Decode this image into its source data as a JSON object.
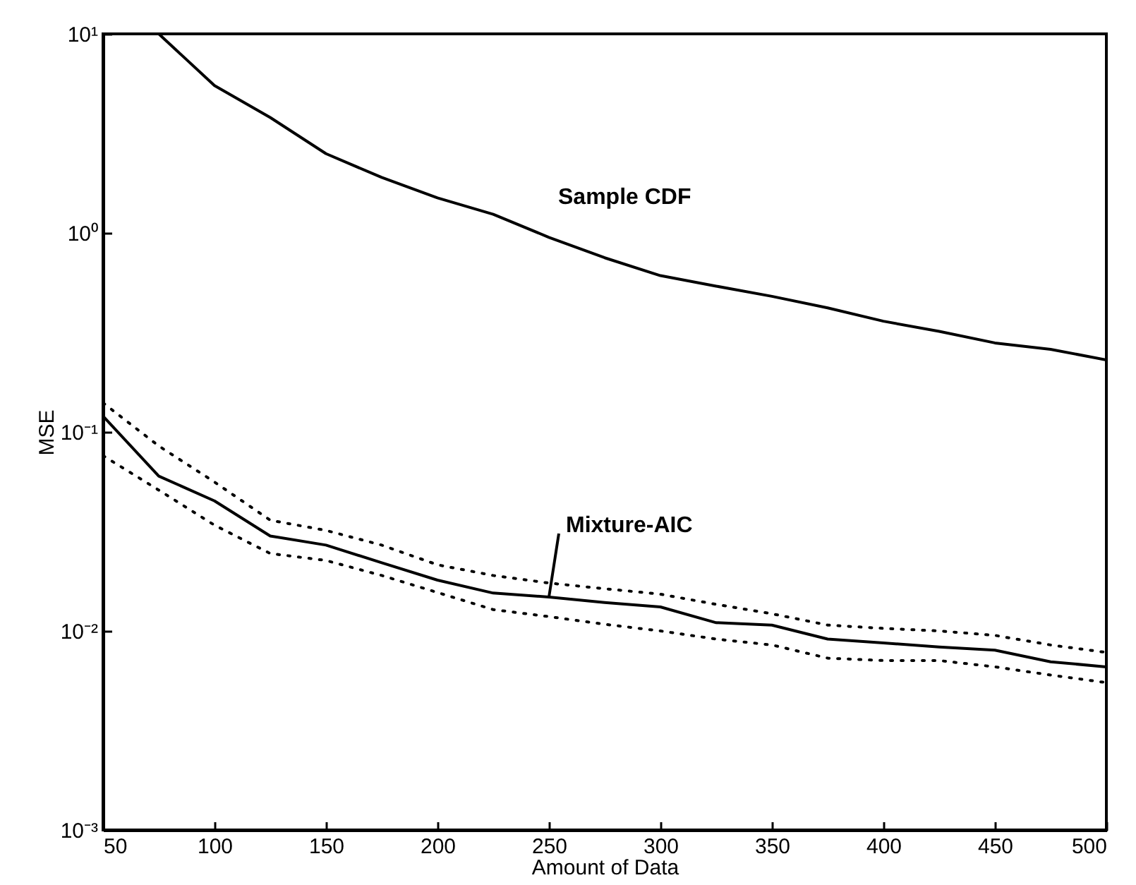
{
  "chart_data": {
    "type": "line",
    "xlabel": "Amount of Data",
    "ylabel": "MSE",
    "log": "y",
    "grid": false,
    "marker": "none",
    "xlim": [
      50,
      500
    ],
    "xticks": [
      50,
      100,
      150,
      200,
      250,
      300,
      350,
      400,
      450,
      500
    ],
    "ylim": [
      0.001,
      10
    ],
    "yticks": [
      {
        "value": 0.001,
        "label": "10⁻³"
      },
      {
        "value": 0.01,
        "label": "10⁻²"
      },
      {
        "value": 0.1,
        "label": "10⁻¹"
      },
      {
        "value": 1,
        "label": "10⁰"
      },
      {
        "value": 10,
        "label": "10¹"
      }
    ],
    "series": [
      {
        "name": "Sample CDF",
        "color": "#000000",
        "line_style": "solid",
        "x": [
          75,
          100,
          125,
          150,
          175,
          200,
          225,
          250,
          275,
          300,
          325,
          350,
          375,
          400,
          425,
          450,
          475,
          500
        ],
        "values": [
          10,
          5.5,
          3.8,
          2.5,
          1.9,
          1.5,
          1.24,
          0.95,
          0.75,
          0.61,
          0.54,
          0.48,
          0.42,
          0.36,
          0.32,
          0.28,
          0.26,
          0.23
        ]
      },
      {
        "name": "Mixture-AIC",
        "color": "#000000",
        "line_style": "solid",
        "x": [
          50,
          75,
          100,
          125,
          150,
          175,
          200,
          225,
          250,
          275,
          300,
          325,
          350,
          375,
          400,
          425,
          450,
          475,
          500
        ],
        "values": [
          0.12,
          0.06,
          0.045,
          0.03,
          0.027,
          0.022,
          0.018,
          0.0155,
          0.0148,
          0.0139,
          0.0132,
          0.011,
          0.0107,
          0.0091,
          0.0087,
          0.0083,
          0.008,
          0.007,
          0.0066
        ]
      },
      {
        "color": "#000000",
        "line_style": "dotted",
        "x": [
          50,
          75,
          100,
          125,
          150,
          175,
          200,
          225,
          250,
          275,
          300,
          325,
          350,
          375,
          400,
          425,
          450,
          475,
          500
        ],
        "values": [
          0.076,
          0.051,
          0.034,
          0.0245,
          0.0226,
          0.019,
          0.0156,
          0.0128,
          0.0118,
          0.0108,
          0.01,
          0.0091,
          0.0085,
          0.0073,
          0.0071,
          0.0071,
          0.0066,
          0.006,
          0.0055
        ]
      },
      {
        "color": "#000000",
        "line_style": "dotted",
        "x": [
          50,
          75,
          100,
          125,
          150,
          175,
          200,
          225,
          250,
          275,
          300,
          325,
          350,
          375,
          400,
          425,
          450,
          475,
          500
        ],
        "values": [
          0.14,
          0.085,
          0.056,
          0.036,
          0.032,
          0.027,
          0.0215,
          0.019,
          0.0174,
          0.0163,
          0.0153,
          0.0136,
          0.0122,
          0.0107,
          0.0103,
          0.01,
          0.0095,
          0.0085,
          0.0078
        ]
      }
    ]
  }
}
